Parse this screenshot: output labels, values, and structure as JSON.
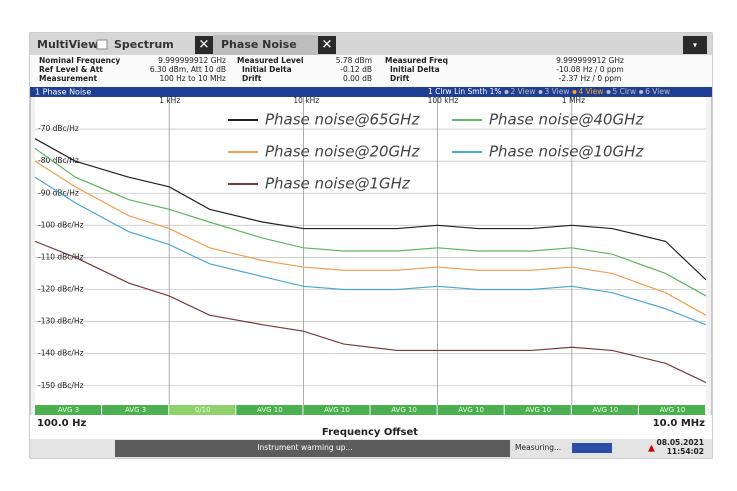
{
  "tabs": [
    "MultiView",
    "Spectrum",
    "Phase Noise"
  ],
  "info": [
    [
      [
        "Nominal Frequency",
        "9.999999912 GHz"
      ],
      [
        "Measured Level",
        "5.78 dBm"
      ],
      [
        "Measured Freq",
        "9.999999912 GHz"
      ]
    ],
    [
      [
        "Ref Level & Att",
        "6.30 dBm, Att 10 dB"
      ],
      [
        "Initial Delta",
        "-0.12 dB"
      ],
      [
        "Initial Delta",
        "-10.08 Hz / 0 ppm"
      ]
    ],
    [
      [
        "Measurement",
        "100 Hz to 10 MHz"
      ],
      [
        "Drift",
        "0.00 dB"
      ],
      [
        "Drift",
        "-2.37 Hz / 0 ppm"
      ]
    ]
  ],
  "plot_title": "1 Phase Noise",
  "trace_info": [
    "1 Clrw Lin Smth 1%",
    "2 View",
    "3 View",
    "4 View",
    "5 Clrw",
    "6 View"
  ],
  "trace_bars": [
    "AVG 3",
    "AVG 3",
    "0/10",
    "AVG 10",
    "AVG 10",
    "AVG 10",
    "AVG 10",
    "AVG 10",
    "AVG 10",
    "AVG 10"
  ],
  "start_label": "100.0 Hz",
  "stop_label": "10.0 MHz",
  "status": {
    "message": "Instrument warming up...",
    "state": "Measuring...",
    "date": "08.05.2021",
    "time": "11:54:02"
  },
  "chart_data": {
    "type": "line",
    "x_label": "Frequency Offset",
    "xscale": "log",
    "xlim": [
      100,
      10000000
    ],
    "xticks": [
      {
        "value": 1000,
        "label": "1 kHz"
      },
      {
        "value": 10000,
        "label": "10 kHz"
      },
      {
        "value": 100000,
        "label": "100 kHz"
      },
      {
        "value": 1000000,
        "label": "1 MHz"
      }
    ],
    "ylim": [
      -156,
      -60
    ],
    "yticks": [
      {
        "value": -70,
        "label": "-70 dBc/Hz"
      },
      {
        "value": -80,
        "label": "-80 dBc/Hz"
      },
      {
        "value": -90,
        "label": "-90 dBc/Hz"
      },
      {
        "value": -100,
        "label": "-100 dBc/Hz"
      },
      {
        "value": -110,
        "label": "-110 dBc/Hz"
      },
      {
        "value": -120,
        "label": "-120 dBc/Hz"
      },
      {
        "value": -130,
        "label": "-130 dBc/Hz"
      },
      {
        "value": -140,
        "label": "-140 dBc/Hz"
      },
      {
        "value": -150,
        "label": "-150 dBc/Hz"
      }
    ],
    "grid": true,
    "x": [
      100,
      200,
      500,
      1000,
      2000,
      5000,
      10000,
      20000,
      50000,
      100000,
      200000,
      500000,
      1000000,
      2000000,
      5000000,
      10000000
    ],
    "series": [
      {
        "name": "Phase noise@65GHz",
        "color": "#222222",
        "values": [
          -73,
          -80,
          -85,
          -88,
          -95,
          -99,
          -101,
          -101,
          -101,
          -100,
          -101,
          -101,
          -100,
          -101,
          -105,
          -117
        ]
      },
      {
        "name": "Phase noise@40GHz",
        "color": "#5cb85c",
        "values": [
          -76,
          -85,
          -92,
          -95,
          -99,
          -104,
          -107,
          -108,
          -108,
          -107,
          -108,
          -108,
          -107,
          -109,
          -115,
          -122
        ]
      },
      {
        "name": "Phase noise@20GHz",
        "color": "#f0a050",
        "values": [
          -80,
          -88,
          -97,
          -101,
          -107,
          -111,
          -113,
          -114,
          -114,
          -113,
          -114,
          -114,
          -113,
          -115,
          -121,
          -128
        ]
      },
      {
        "name": "Phase noise@10GHz",
        "color": "#4aa8d8",
        "values": [
          -85,
          -93,
          -102,
          -106,
          -112,
          -116,
          -119,
          -120,
          -120,
          -119,
          -120,
          -120,
          -119,
          -121,
          -126,
          -131
        ]
      },
      {
        "name": "Phase noise@1GHz",
        "color": "#7a3a3a",
        "values": [
          -105,
          -110,
          -118,
          -122,
          -128,
          -131,
          -133,
          -137,
          -139,
          -139,
          -139,
          -139,
          -138,
          -139,
          -143,
          -149
        ]
      }
    ]
  }
}
